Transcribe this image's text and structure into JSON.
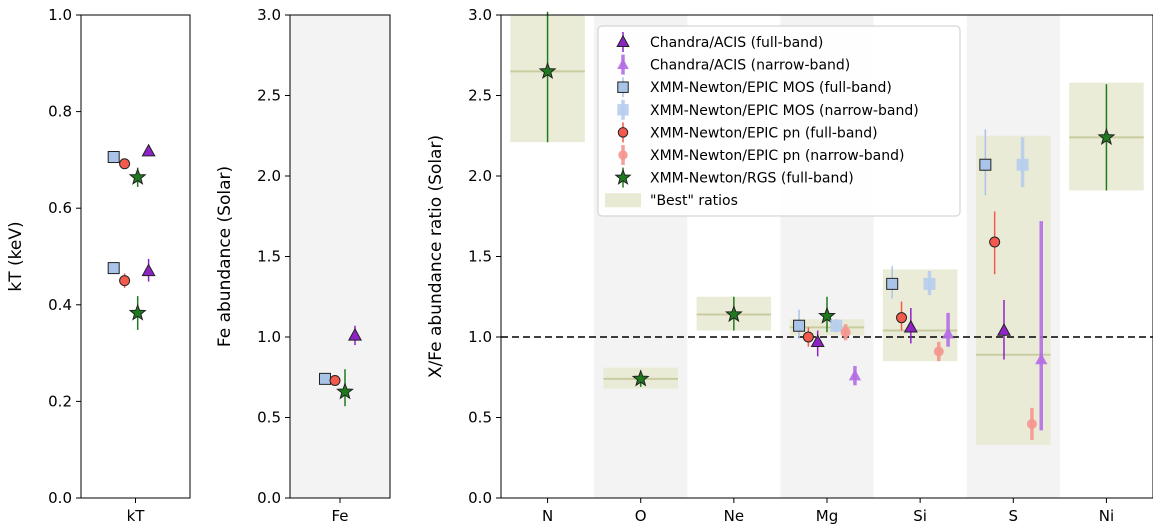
{
  "colors": {
    "chandra": "#8e24c8",
    "chandra_narrow": "#b46ee6",
    "mos": "#a9c4e8",
    "mos_narrow": "#b7cdee",
    "pn": "#f25a4e",
    "pn_narrow": "#f59690",
    "rgs": "#1f7a1f",
    "best_fill": "#e9ead3",
    "best_line": "#c9cca0",
    "shade": "#f3f3f3"
  },
  "chart_data": [
    {
      "type": "scatter",
      "panel": "kT",
      "categories": [
        "kT"
      ],
      "ylabel": "kT (keV)",
      "ylim": [
        0.0,
        1.0
      ],
      "yticks": [
        "0.0",
        "0.2",
        "0.4",
        "0.6",
        "0.8",
        "1.0"
      ],
      "points": [
        {
          "series": "mos_full",
          "x": "kT",
          "y": 0.706,
          "err": [
            0.0,
            0.0
          ]
        },
        {
          "series": "pn_full",
          "x": "kT",
          "y": 0.692,
          "err": [
            0.0,
            0.0
          ]
        },
        {
          "series": "chandra_full",
          "x": "kT",
          "y": 0.718,
          "err": [
            0.0,
            0.0
          ]
        },
        {
          "series": "rgs_full",
          "x": "kT",
          "y": 0.664,
          "err": [
            0.02,
            0.02
          ]
        },
        {
          "series": "mos_full",
          "x": "kT",
          "y": 0.476,
          "err": [
            0.0,
            0.0
          ]
        },
        {
          "series": "pn_full",
          "x": "kT",
          "y": 0.45,
          "err": [
            0.015,
            0.015
          ]
        },
        {
          "series": "chandra_full",
          "x": "kT",
          "y": 0.47,
          "err": [
            0.022,
            0.025
          ]
        },
        {
          "series": "rgs_full",
          "x": "kT",
          "y": 0.383,
          "err": [
            0.035,
            0.035
          ]
        }
      ]
    },
    {
      "type": "scatter",
      "panel": "Fe",
      "categories": [
        "Fe"
      ],
      "ylabel": "Fe abundance (Solar)",
      "ylim": [
        0.0,
        3.0
      ],
      "yticks": [
        "0.0",
        "0.5",
        "1.0",
        "1.5",
        "2.0",
        "2.5",
        "3.0"
      ],
      "points": [
        {
          "series": "mos_full",
          "x": "Fe",
          "y": 0.74,
          "err": [
            0.03,
            0.03
          ]
        },
        {
          "series": "pn_full",
          "x": "Fe",
          "y": 0.73,
          "err": [
            0.03,
            0.03
          ]
        },
        {
          "series": "chandra_full",
          "x": "Fe",
          "y": 1.01,
          "err": [
            0.06,
            0.06
          ]
        },
        {
          "series": "rgs_full",
          "x": "Fe",
          "y": 0.66,
          "err": [
            0.09,
            0.14
          ]
        }
      ]
    },
    {
      "type": "scatter",
      "panel": "ratios",
      "categories": [
        "N",
        "O",
        "Ne",
        "Mg",
        "Si",
        "S",
        "Ni"
      ],
      "ylabel": "X/Fe abundance ratio (Solar)",
      "ylim": [
        0.0,
        3.0
      ],
      "yticks": [
        "0.0",
        "0.5",
        "1.0",
        "1.5",
        "2.0",
        "2.5",
        "3.0"
      ],
      "reference_line": 1.0,
      "best_ratios": [
        {
          "x": "N",
          "value": 2.65,
          "range": [
            2.21,
            3.0
          ]
        },
        {
          "x": "O",
          "value": 0.74,
          "range": [
            0.68,
            0.81
          ]
        },
        {
          "x": "Ne",
          "value": 1.14,
          "range": [
            1.04,
            1.25
          ]
        },
        {
          "x": "Mg",
          "value": 1.06,
          "range": [
            1.01,
            1.11
          ]
        },
        {
          "x": "Si",
          "value": 1.04,
          "range": [
            0.85,
            1.42
          ]
        },
        {
          "x": "S",
          "value": 0.89,
          "range": [
            0.33,
            2.25
          ]
        },
        {
          "x": "Ni",
          "value": 2.24,
          "range": [
            1.91,
            2.58
          ]
        }
      ],
      "points": [
        {
          "series": "rgs_full",
          "x": "N",
          "offset": 0.0,
          "y": 2.65,
          "err": [
            0.44,
            0.37
          ]
        },
        {
          "series": "rgs_full",
          "x": "O",
          "offset": 0.0,
          "y": 0.74,
          "err": [
            0.05,
            0.05
          ]
        },
        {
          "series": "rgs_full",
          "x": "Ne",
          "offset": 0.0,
          "y": 1.14,
          "err": [
            0.1,
            0.11
          ]
        },
        {
          "series": "mos_full",
          "x": "Mg",
          "offset": -0.3,
          "y": 1.07,
          "err": [
            0.08,
            0.1
          ]
        },
        {
          "series": "pn_full",
          "x": "Mg",
          "offset": -0.2,
          "y": 1.0,
          "err": [
            0.06,
            0.06
          ]
        },
        {
          "series": "chandra_full",
          "x": "Mg",
          "offset": -0.1,
          "y": 0.97,
          "err": [
            0.09,
            0.07
          ]
        },
        {
          "series": "rgs_full",
          "x": "Mg",
          "offset": 0.0,
          "y": 1.13,
          "err": [
            0.1,
            0.12
          ]
        },
        {
          "series": "mos_narrow",
          "x": "Mg",
          "offset": 0.1,
          "y": 1.07,
          "err": [
            0.04,
            0.04
          ]
        },
        {
          "series": "pn_narrow",
          "x": "Mg",
          "offset": 0.2,
          "y": 1.03,
          "err": [
            0.05,
            0.05
          ]
        },
        {
          "series": "chandra_narrow",
          "x": "Mg",
          "offset": 0.3,
          "y": 0.76,
          "err": [
            0.06,
            0.06
          ]
        },
        {
          "series": "mos_full",
          "x": "Si",
          "offset": -0.3,
          "y": 1.33,
          "err": [
            0.09,
            0.11
          ]
        },
        {
          "series": "pn_full",
          "x": "Si",
          "offset": -0.2,
          "y": 1.12,
          "err": [
            0.08,
            0.1
          ]
        },
        {
          "series": "chandra_full",
          "x": "Si",
          "offset": -0.1,
          "y": 1.06,
          "err": [
            0.1,
            0.12
          ]
        },
        {
          "series": "mos_narrow",
          "x": "Si",
          "offset": 0.1,
          "y": 1.33,
          "err": [
            0.07,
            0.08
          ]
        },
        {
          "series": "pn_narrow",
          "x": "Si",
          "offset": 0.2,
          "y": 0.91,
          "err": [
            0.06,
            0.06
          ]
        },
        {
          "series": "chandra_narrow",
          "x": "Si",
          "offset": 0.3,
          "y": 1.02,
          "err": [
            0.08,
            0.13
          ]
        },
        {
          "series": "mos_full",
          "x": "S",
          "offset": -0.3,
          "y": 2.07,
          "err": [
            0.19,
            0.22
          ]
        },
        {
          "series": "pn_full",
          "x": "S",
          "offset": -0.2,
          "y": 1.59,
          "err": [
            0.2,
            0.19
          ]
        },
        {
          "series": "chandra_full",
          "x": "S",
          "offset": -0.1,
          "y": 1.04,
          "err": [
            0.18,
            0.19
          ]
        },
        {
          "series": "mos_narrow",
          "x": "S",
          "offset": 0.1,
          "y": 2.07,
          "err": [
            0.14,
            0.17
          ]
        },
        {
          "series": "pn_narrow",
          "x": "S",
          "offset": 0.2,
          "y": 0.46,
          "err": [
            0.1,
            0.1
          ]
        },
        {
          "series": "chandra_narrow",
          "x": "S",
          "offset": 0.3,
          "y": 0.86,
          "err": [
            0.44,
            0.86
          ]
        },
        {
          "series": "rgs_full",
          "x": "Ni",
          "offset": 0.0,
          "y": 2.24,
          "err": [
            0.33,
            0.33
          ]
        }
      ]
    }
  ],
  "legend": {
    "placement": "top-center",
    "entries": [
      {
        "key": "chandra_full",
        "label": "Chandra/ACIS (full-band)"
      },
      {
        "key": "chandra_narrow",
        "label": "Chandra/ACIS (narrow-band)"
      },
      {
        "key": "mos_full",
        "label": "XMM-Newton/EPIC MOS (full-band)"
      },
      {
        "key": "mos_narrow",
        "label": "XMM-Newton/EPIC MOS (narrow-band)"
      },
      {
        "key": "pn_full",
        "label": "XMM-Newton/EPIC pn (full-band)"
      },
      {
        "key": "pn_narrow",
        "label": "XMM-Newton/EPIC pn (narrow-band)"
      },
      {
        "key": "rgs_full",
        "label": "XMM-Newton/RGS (full-band)"
      },
      {
        "key": "best",
        "label": "\"Best\" ratios"
      }
    ]
  }
}
